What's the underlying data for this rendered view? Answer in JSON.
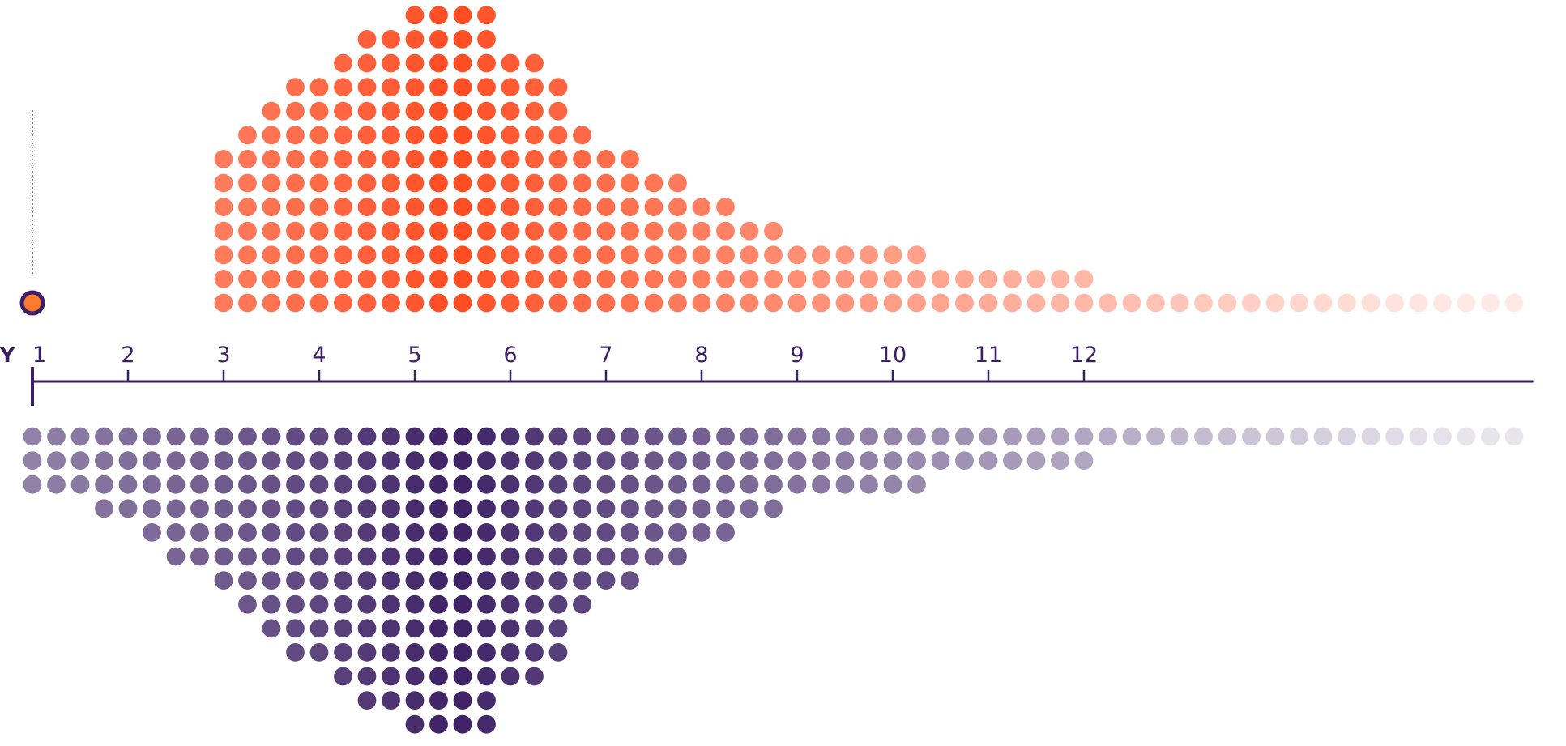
{
  "chart_data": {
    "type": "dot-histogram",
    "title": "",
    "xlabel": "",
    "ylabel": "",
    "axis_cut_label": "Y",
    "x_ticks": [
      1,
      2,
      3,
      4,
      5,
      6,
      7,
      8,
      9,
      10,
      11,
      12
    ],
    "xlim": [
      1,
      16.7
    ],
    "dot_step": 0.25,
    "grid": false,
    "legend": "none",
    "series": [
      {
        "side": "top",
        "color": "#ff4a1f",
        "ranges": [
          [
            3,
            16.5
          ],
          [
            3,
            12
          ],
          [
            3,
            10.25
          ],
          [
            3,
            8.75
          ],
          [
            3,
            8.25
          ],
          [
            3,
            7.75
          ],
          [
            3,
            7.25
          ],
          [
            3.25,
            6.75
          ],
          [
            3.5,
            6.5
          ],
          [
            3.75,
            6.5
          ],
          [
            4.25,
            6.25
          ],
          [
            4.5,
            5.75
          ],
          [
            5,
            5.75
          ]
        ]
      },
      {
        "side": "bottom",
        "color": "#3b1e63",
        "ranges": [
          [
            1,
            16.5
          ],
          [
            1,
            12
          ],
          [
            1,
            10.25
          ],
          [
            1.75,
            8.75
          ],
          [
            2.25,
            8.25
          ],
          [
            2.5,
            7.75
          ],
          [
            3,
            7.25
          ],
          [
            3.25,
            6.75
          ],
          [
            3.5,
            6.5
          ],
          [
            3.75,
            6.5
          ],
          [
            4.25,
            6.25
          ],
          [
            4.5,
            5.75
          ],
          [
            5,
            5.75
          ]
        ]
      }
    ],
    "baseline_marker": {
      "value": 1,
      "fill": "#ff7a2e",
      "stroke": "#3b1e63"
    },
    "axis_color": "#3b1e63"
  }
}
